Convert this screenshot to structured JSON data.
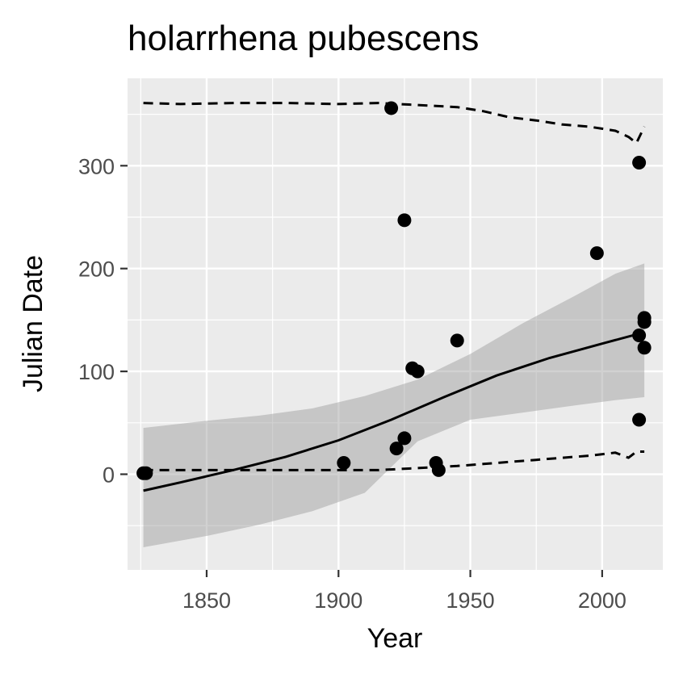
{
  "chart_data": {
    "type": "scatter",
    "title": "holarrhena pubescens",
    "xlabel": "Year",
    "ylabel": "Julian Date",
    "xlim": [
      1820,
      2023
    ],
    "ylim": [
      -93,
      385
    ],
    "x_ticks": [
      1850,
      1900,
      1950,
      2000
    ],
    "x_tick_labels": [
      "1850",
      "1900",
      "1950",
      "2000"
    ],
    "y_ticks": [
      0,
      100,
      200,
      300
    ],
    "y_tick_labels": [
      "0",
      "100",
      "200",
      "300"
    ],
    "grid": true,
    "points": [
      {
        "x": 1826,
        "y": 1
      },
      {
        "x": 1827,
        "y": 1
      },
      {
        "x": 1902,
        "y": 11
      },
      {
        "x": 1920,
        "y": 356
      },
      {
        "x": 1922,
        "y": 25
      },
      {
        "x": 1925,
        "y": 247
      },
      {
        "x": 1925,
        "y": 35
      },
      {
        "x": 1928,
        "y": 103
      },
      {
        "x": 1930,
        "y": 100
      },
      {
        "x": 1937,
        "y": 11
      },
      {
        "x": 1938,
        "y": 4
      },
      {
        "x": 1945,
        "y": 130
      },
      {
        "x": 1998,
        "y": 215
      },
      {
        "x": 2014,
        "y": 303
      },
      {
        "x": 2014,
        "y": 135
      },
      {
        "x": 2014,
        "y": 53
      },
      {
        "x": 2016,
        "y": 152
      },
      {
        "x": 2016,
        "y": 148
      },
      {
        "x": 2016,
        "y": 123
      }
    ],
    "trend": {
      "x": [
        1826,
        1840,
        1860,
        1880,
        1900,
        1920,
        1940,
        1960,
        1980,
        2000,
        2016
      ],
      "y": [
        -16,
        -8,
        4,
        17,
        33,
        53,
        75,
        96,
        113,
        127,
        138
      ]
    },
    "ribbon": {
      "x": [
        1826,
        1850,
        1870,
        1890,
        1910,
        1930,
        1950,
        1970,
        1990,
        2005,
        2016
      ],
      "lower": [
        -71,
        -60,
        -49,
        -36,
        -18,
        32,
        53,
        60,
        67,
        72,
        75
      ],
      "upper": [
        45,
        52,
        57,
        64,
        76,
        92,
        117,
        147,
        174,
        195,
        205
      ]
    },
    "upper_quantile": {
      "x": [
        1826,
        1840,
        1860,
        1880,
        1900,
        1915,
        1930,
        1945,
        1955,
        1965,
        1975,
        1985,
        1995,
        2005,
        2010,
        2013,
        2016
      ],
      "y": [
        361,
        360,
        361,
        361,
        360,
        361,
        359,
        357,
        353,
        347,
        344,
        340,
        338,
        334,
        328,
        322,
        338
      ]
    },
    "lower_quantile": {
      "x": [
        1826,
        1840,
        1860,
        1880,
        1900,
        1915,
        1930,
        1945,
        1955,
        1965,
        1975,
        1985,
        1995,
        2005,
        2010,
        2013,
        2016
      ],
      "y": [
        4,
        4,
        4,
        4,
        4,
        4,
        6,
        8,
        10,
        12,
        14,
        16,
        18,
        21,
        16,
        22,
        22
      ]
    }
  }
}
